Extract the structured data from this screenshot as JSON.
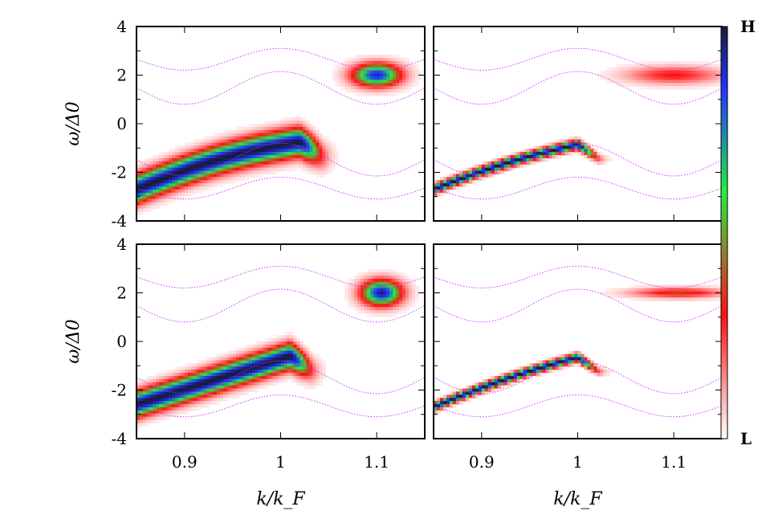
{
  "chart_data": {
    "type": "heatmap",
    "layout": "2x2 grid of spectral-intensity heatmaps with dotted overlay curves",
    "x_axis": {
      "label": "k/k_F",
      "range": [
        0.85,
        1.15
      ],
      "ticks": [
        0.9,
        1,
        1.1
      ],
      "tick_labels": [
        "0.9",
        "1",
        "1.1"
      ]
    },
    "y_axis": {
      "label": "ω/Δ0",
      "range": [
        -4,
        4
      ],
      "ticks": [
        -4,
        -2,
        0,
        2,
        4
      ],
      "tick_labels": [
        "-4",
        "-2",
        "0",
        "2",
        "4"
      ]
    },
    "colorbar": {
      "high_label": "H",
      "low_label": "L",
      "colors_high_to_low": [
        "#1a1a3a",
        "#2233ff",
        "#22ee44",
        "#ff1111",
        "#ffffff"
      ]
    },
    "overlay_curve_color": "#cc33ff",
    "overlay_curves": {
      "upper_outer": {
        "min": 2.2,
        "max": 3.1,
        "center": 1.0,
        "width": 0.1
      },
      "upper_inner": {
        "min": 0.8,
        "max": 2.15,
        "center": 1.0,
        "width": 0.1
      },
      "lower_inner": {
        "min": -2.15,
        "max": -0.8,
        "center": 1.0,
        "width": 0.1
      },
      "lower_outer": {
        "min": -3.1,
        "max": -2.2,
        "center": 1.0,
        "width": 0.1
      }
    },
    "panels": [
      {
        "id": "top-left",
        "features": [
          {
            "kind": "band",
            "k_start": 0.85,
            "k_end": 1.02,
            "w_start": -2.7,
            "w_end": -0.75,
            "curvature": 0.6,
            "width": 0.55,
            "intensity": 1.0
          },
          {
            "kind": "blob",
            "k": 1.1,
            "w": 2.0,
            "rk": 0.006,
            "rw": 0.45,
            "intensity": 0.9
          }
        ]
      },
      {
        "id": "top-right",
        "features": [
          {
            "kind": "band",
            "k_start": 0.85,
            "k_end": 1.0,
            "w_start": -2.7,
            "w_end": -0.85,
            "curvature": 0.35,
            "width": 0.18,
            "intensity": 1.0
          },
          {
            "kind": "blob",
            "k": 1.1,
            "w": 2.0,
            "rk": 0.012,
            "rw": 0.35,
            "intensity": 0.3
          }
        ]
      },
      {
        "id": "bottom-left",
        "features": [
          {
            "kind": "band",
            "k_start": 0.85,
            "k_end": 1.01,
            "w_start": -2.6,
            "w_end": -0.6,
            "curvature": 0.0,
            "width": 0.5,
            "intensity": 1.0
          },
          {
            "kind": "blob",
            "k": 1.105,
            "w": 2.0,
            "rk": 0.005,
            "rw": 0.5,
            "intensity": 0.95
          }
        ]
      },
      {
        "id": "bottom-right",
        "features": [
          {
            "kind": "band",
            "k_start": 0.85,
            "k_end": 1.0,
            "w_start": -2.7,
            "w_end": -0.65,
            "curvature": 0.3,
            "width": 0.16,
            "intensity": 1.0
          },
          {
            "kind": "blob",
            "k": 1.105,
            "w": 2.0,
            "rk": 0.012,
            "rw": 0.2,
            "intensity": 0.35
          }
        ]
      }
    ]
  }
}
